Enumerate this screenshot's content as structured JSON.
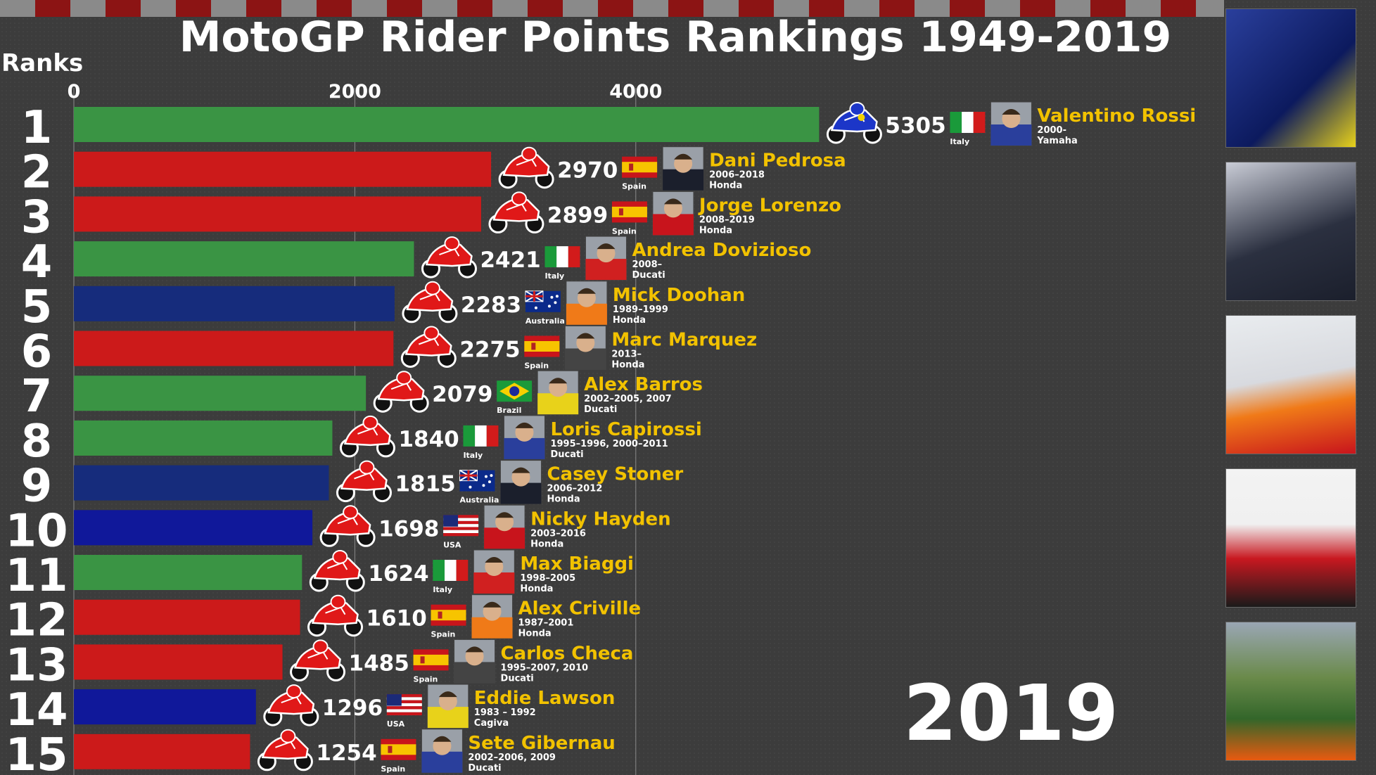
{
  "title": "MotoGP Rider Points Rankings 1949-2019",
  "ranks_label": "Ranks",
  "year": "2019",
  "colors": {
    "Italy": "#3a9444",
    "Spain": "#cc1a1a",
    "Brazil": "#3a9444",
    "Australia": "#162c7c",
    "USA": "#10189a"
  },
  "chart_data": {
    "type": "bar",
    "title": "MotoGP Rider Points Rankings 1949-2019",
    "xlim": [
      0,
      5500
    ],
    "xticks": [
      0,
      2000,
      4000
    ],
    "grid": "vertical",
    "categories": [
      "1",
      "2",
      "3",
      "4",
      "5",
      "6",
      "7",
      "8",
      "9",
      "10",
      "11",
      "12",
      "13",
      "14",
      "15"
    ],
    "values": [
      5305,
      2970,
      2899,
      2421,
      2283,
      2275,
      2079,
      1840,
      1815,
      1698,
      1624,
      1610,
      1485,
      1296,
      1254
    ],
    "riders": [
      {
        "rank": "1",
        "name": "Valentino Rossi",
        "points": 5305,
        "country": "Italy",
        "years": "2000-",
        "team": "Yamaha",
        "bike": "blue"
      },
      {
        "rank": "2",
        "name": "Dani Pedrosa",
        "points": 2970,
        "country": "Spain",
        "years": "2006–2018",
        "team": "Honda",
        "bike": "red"
      },
      {
        "rank": "3",
        "name": "Jorge Lorenzo",
        "points": 2899,
        "country": "Spain",
        "years": "2008–2019",
        "team": "Honda",
        "bike": "red"
      },
      {
        "rank": "4",
        "name": "Andrea Dovizioso",
        "points": 2421,
        "country": "Italy",
        "years": "2008–",
        "team": "Ducati",
        "bike": "red"
      },
      {
        "rank": "5",
        "name": "Mick Doohan",
        "points": 2283,
        "country": "Australia",
        "years": "1989–1999",
        "team": "Honda",
        "bike": "red"
      },
      {
        "rank": "6",
        "name": "Marc Marquez",
        "points": 2275,
        "country": "Spain",
        "years": "2013–",
        "team": "Honda",
        "bike": "red"
      },
      {
        "rank": "7",
        "name": "Alex Barros",
        "points": 2079,
        "country": "Brazil",
        "years": "2002–2005, 2007",
        "team": "Ducati",
        "bike": "red"
      },
      {
        "rank": "8",
        "name": "Loris Capirossi",
        "points": 1840,
        "country": "Italy",
        "years": "1995–1996, 2000–2011",
        "team": "Ducati",
        "bike": "red"
      },
      {
        "rank": "9",
        "name": "Casey Stoner",
        "points": 1815,
        "country": "Australia",
        "years": "2006–2012",
        "team": "Honda",
        "bike": "red"
      },
      {
        "rank": "10",
        "name": "Nicky Hayden",
        "points": 1698,
        "country": "USA",
        "years": "2003–2016",
        "team": "Honda",
        "bike": "red"
      },
      {
        "rank": "11",
        "name": "Max Biaggi",
        "points": 1624,
        "country": "Italy",
        "years": "1998–2005",
        "team": "Honda",
        "bike": "red"
      },
      {
        "rank": "12",
        "name": "Alex Criville",
        "points": 1610,
        "country": "Spain",
        "years": "1987–2001",
        "team": "Honda",
        "bike": "red"
      },
      {
        "rank": "13",
        "name": "Carlos Checa",
        "points": 1485,
        "country": "Spain",
        "years": "1995–2007, 2010",
        "team": "Ducati",
        "bike": "red"
      },
      {
        "rank": "14",
        "name": "Eddie Lawson",
        "points": 1296,
        "country": "USA",
        "years": "1983 – 1992",
        "team": "Cagiva",
        "bike": "red"
      },
      {
        "rank": "15",
        "name": "Sete Gibernau",
        "points": 1254,
        "country": "Spain",
        "years": "2002–2006, 2009",
        "team": "Ducati",
        "bike": "red"
      }
    ]
  }
}
